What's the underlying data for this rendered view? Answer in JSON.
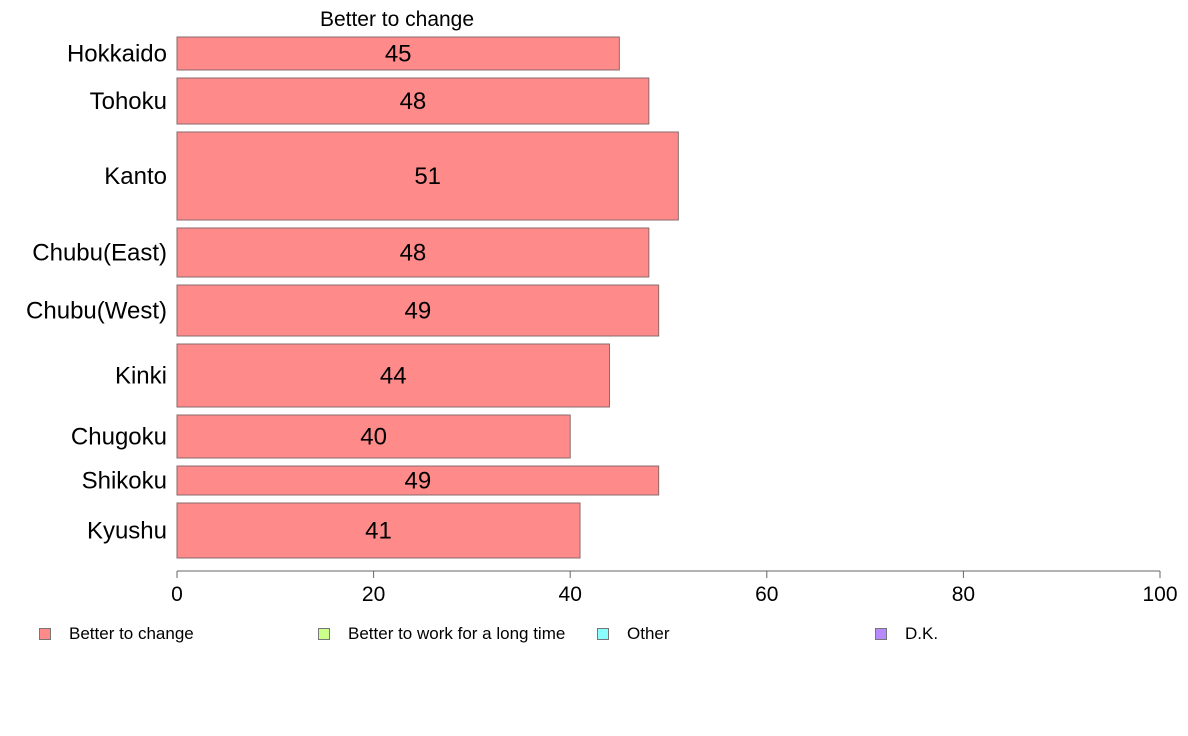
{
  "chart_data": {
    "type": "bar",
    "orientation": "horizontal",
    "title": "Better to change",
    "categories": [
      "Hokkaido",
      "Tohoku",
      "Kanto",
      "Chubu(East)",
      "Chubu(West)",
      "Kinki",
      "Chugoku",
      "Shikoku",
      "Kyushu"
    ],
    "series": [
      {
        "name": "Better to change",
        "values": [
          45,
          48,
          51,
          48,
          49,
          44,
          40,
          49,
          41
        ],
        "color": "#ff8a8a"
      }
    ],
    "data_labels": [
      "45",
      "48",
      "51",
      "48",
      "49",
      "44",
      "40",
      "49",
      "41"
    ],
    "xlim": [
      0,
      100
    ],
    "x_ticks": [
      0,
      20,
      40,
      60,
      80,
      100
    ],
    "grid": false,
    "legend_position": "bottom",
    "legend": [
      {
        "label": "Better to change",
        "color": "#ff8a8a"
      },
      {
        "label": "Better to work for a long time",
        "color": "#ccff8a"
      },
      {
        "label": "Other",
        "color": "#8affff"
      },
      {
        "label": "D.K.",
        "color": "#b88aff"
      }
    ]
  }
}
